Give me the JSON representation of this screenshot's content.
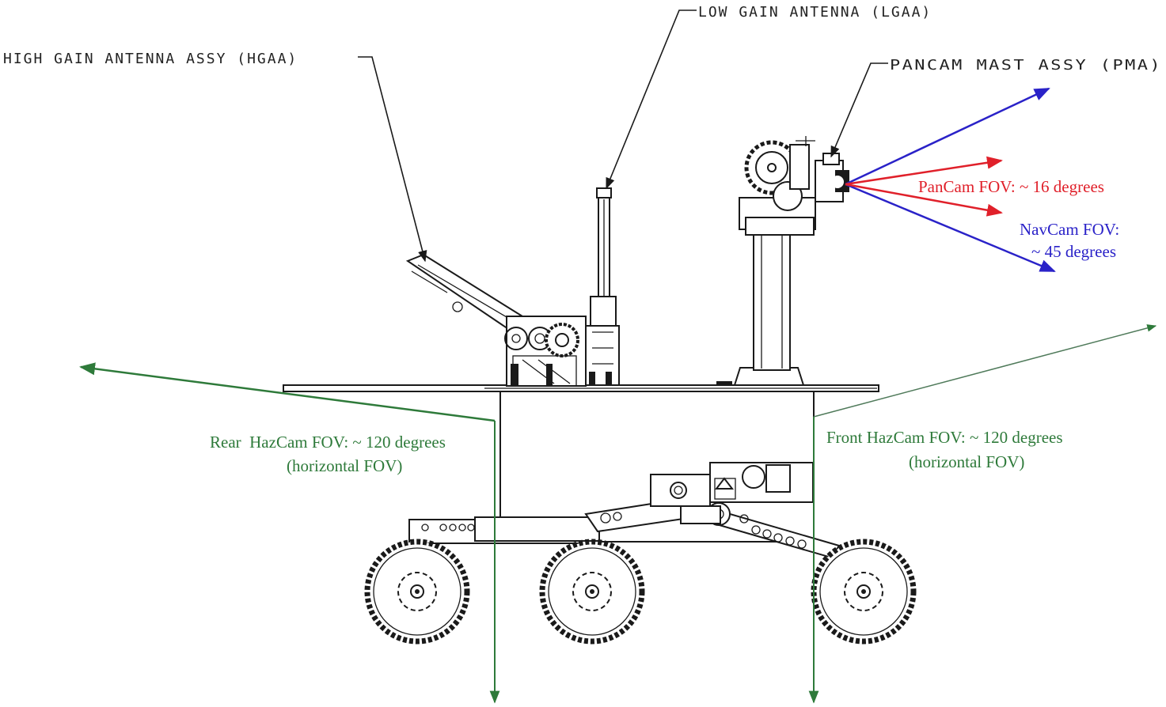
{
  "labels": {
    "hgaa": "HIGH GAIN ANTENNA ASSY (HGAA)",
    "lgaa": "LOW GAIN ANTENNA (LGAA)",
    "pma": "PANCAM MAST ASSY (PMA)",
    "pancam_fov": "PanCam FOV: ~ 16 degrees",
    "navcam_fov_line1": "NavCam FOV:",
    "navcam_fov_line2": "~ 45 degrees",
    "rear_hazcam_line1": "Rear  HazCam FOV: ~ 120 degrees",
    "rear_hazcam_line2": "(horizontal FOV)",
    "front_hazcam_line1": "Front HazCam FOV: ~ 120 degrees",
    "front_hazcam_line2": "(horizontal FOV)"
  },
  "colors": {
    "pancam": "#e0202a",
    "navcam": "#2a22c8",
    "hazcam": "#2e7a3a",
    "ink": "#1a1a1a"
  }
}
